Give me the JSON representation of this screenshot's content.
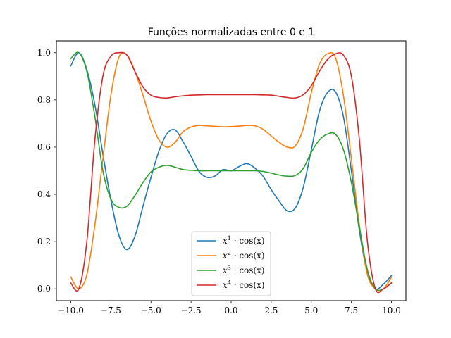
{
  "chart_data": {
    "type": "line",
    "title": "Funções normalizadas entre 0 e 1",
    "xlabel": "",
    "ylabel": "",
    "xlim": [
      -10.9,
      10.9
    ],
    "ylim": [
      -0.05,
      1.05
    ],
    "xticks": [
      -10.0,
      -7.5,
      -5.0,
      -2.5,
      0.0,
      2.5,
      5.0,
      7.5,
      10.0
    ],
    "xtick_labels": [
      "−10.0",
      "−7.5",
      "−5.0",
      "−2.5",
      "0.0",
      "2.5",
      "5.0",
      "7.5",
      "10.0"
    ],
    "yticks": [
      0.0,
      0.2,
      0.4,
      0.6,
      0.8,
      1.0
    ],
    "ytick_labels": [
      "0.0",
      "0.2",
      "0.4",
      "0.6",
      "0.8",
      "1.0"
    ],
    "legend_placement": "lower-center",
    "grid": false,
    "x": [
      -10.0,
      -9.5,
      -9.0,
      -8.5,
      -8.0,
      -7.5,
      -7.0,
      -6.5,
      -6.0,
      -5.5,
      -5.0,
      -4.5,
      -4.0,
      -3.5,
      -3.0,
      -2.5,
      -2.0,
      -1.5,
      -1.0,
      -0.5,
      0.0,
      0.5,
      1.0,
      1.5,
      2.0,
      2.5,
      3.0,
      3.5,
      4.0,
      4.5,
      5.0,
      5.5,
      6.0,
      6.5,
      7.0,
      7.5,
      8.0,
      8.5,
      9.0,
      9.5,
      10.0
    ],
    "series": [
      {
        "name": "x^1 · cos(x)",
        "label_base": "x",
        "label_power": "1",
        "label_tail": " · cos(x)",
        "color": "#1f77b4",
        "values": [
          0.944,
          1.0,
          0.928,
          0.78,
          0.571,
          0.376,
          0.226,
          0.166,
          0.223,
          0.349,
          0.472,
          0.584,
          0.657,
          0.673,
          0.623,
          0.561,
          0.497,
          0.472,
          0.478,
          0.505,
          0.5,
          0.518,
          0.53,
          0.51,
          0.476,
          0.42,
          0.371,
          0.33,
          0.342,
          0.43,
          0.588,
          0.75,
          0.83,
          0.835,
          0.73,
          0.5,
          0.246,
          0.066,
          0.0,
          0.02,
          0.056
        ]
      },
      {
        "name": "x^2 · cos(x)",
        "label_base": "x",
        "label_power": "2",
        "label_tail": " · cos(x)",
        "color": "#ff7f0e",
        "values": [
          0.05,
          0.0,
          0.06,
          0.27,
          0.55,
          0.82,
          0.98,
          0.99,
          0.92,
          0.82,
          0.71,
          0.63,
          0.6,
          0.62,
          0.665,
          0.685,
          0.692,
          0.69,
          0.688,
          0.686,
          0.687,
          0.689,
          0.692,
          0.69,
          0.675,
          0.647,
          0.62,
          0.6,
          0.605,
          0.68,
          0.83,
          0.95,
          0.995,
          0.98,
          0.82,
          0.55,
          0.27,
          0.06,
          0.0,
          0.0,
          0.05
        ]
      },
      {
        "name": "x^3 · cos(x)",
        "label_base": "x",
        "label_power": "3",
        "label_tail": " · cos(x)",
        "color": "#2ca02c",
        "values": [
          0.975,
          1.0,
          0.92,
          0.73,
          0.5,
          0.38,
          0.345,
          0.35,
          0.395,
          0.45,
          0.495,
          0.515,
          0.523,
          0.515,
          0.505,
          0.502,
          0.5,
          0.5,
          0.5,
          0.5,
          0.5,
          0.5,
          0.5,
          0.5,
          0.497,
          0.49,
          0.482,
          0.477,
          0.48,
          0.51,
          0.578,
          0.63,
          0.655,
          0.655,
          0.59,
          0.45,
          0.26,
          0.08,
          0.0,
          0.0,
          0.025
        ]
      },
      {
        "name": "x^4 · cos(x)",
        "label_base": "x",
        "label_power": "4",
        "label_tail": " · cos(x)",
        "color": "#d62728",
        "values": [
          0.025,
          0.0,
          0.2,
          0.63,
          0.9,
          0.985,
          1.0,
          0.99,
          0.92,
          0.855,
          0.82,
          0.81,
          0.808,
          0.813,
          0.817,
          0.82,
          0.821,
          0.822,
          0.822,
          0.822,
          0.822,
          0.822,
          0.822,
          0.822,
          0.821,
          0.82,
          0.815,
          0.81,
          0.808,
          0.822,
          0.86,
          0.92,
          0.97,
          0.995,
          0.99,
          0.9,
          0.63,
          0.2,
          0.0,
          0.0,
          0.025
        ]
      }
    ]
  }
}
